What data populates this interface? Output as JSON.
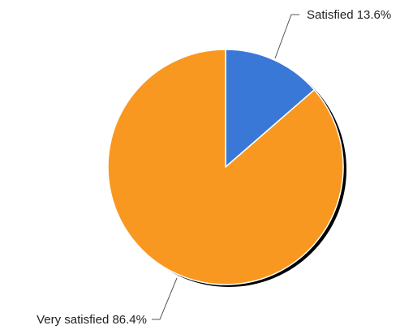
{
  "chart_data": {
    "type": "pie",
    "title": "",
    "slices": [
      {
        "label": "Satisfied",
        "value": 13.6,
        "display": "Satisfied 13.6%",
        "color": "#3a78d8"
      },
      {
        "label": "Very satisfied",
        "value": 86.4,
        "display": "Very satisfied 86.4%",
        "color": "#f99820"
      }
    ],
    "start_angle_deg": 0,
    "direction": "clockwise",
    "slice_border_color": "#ffffff",
    "shadow_color": "#000000",
    "legend": "none",
    "label_style": "outside-with-leader-lines"
  }
}
